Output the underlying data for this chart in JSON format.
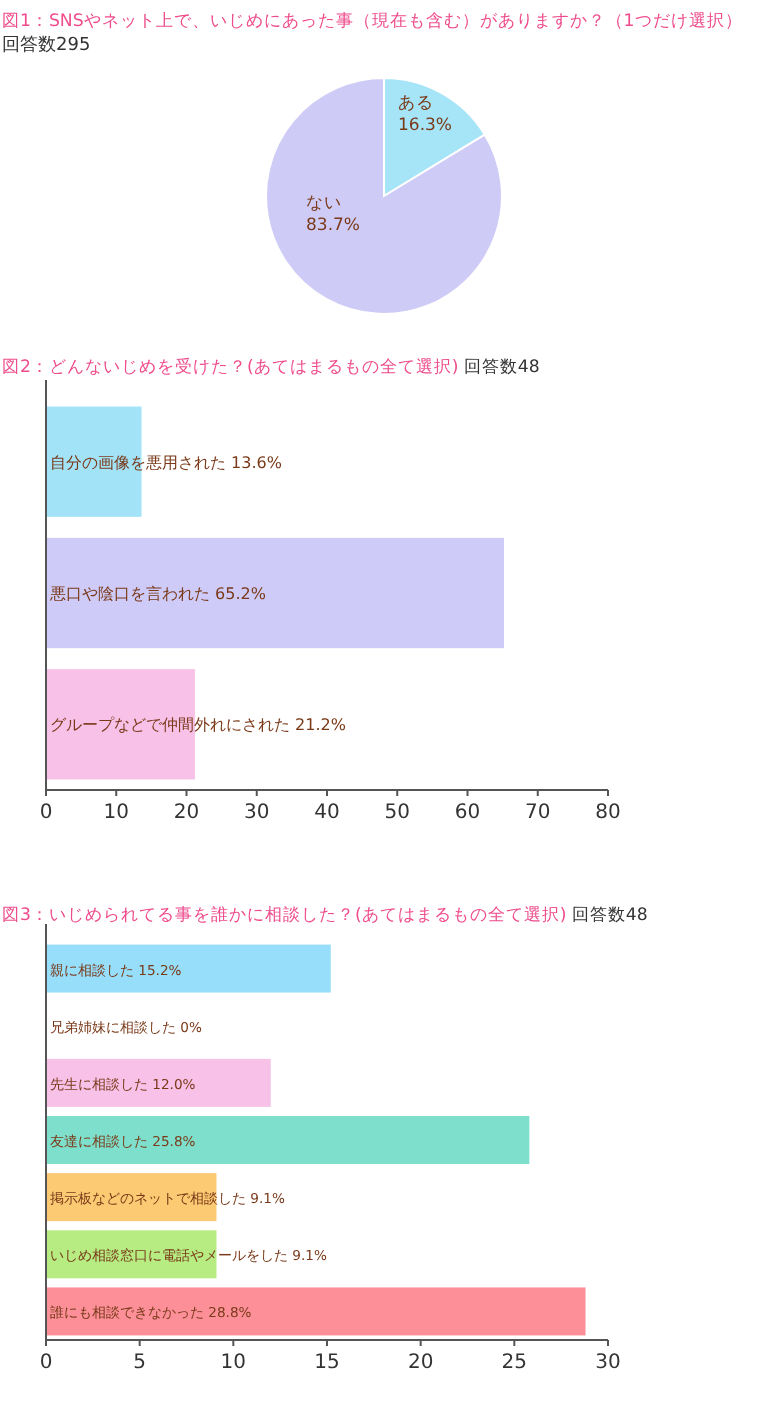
{
  "chart_data": [
    {
      "type": "pie",
      "title": "図1：SNSやネット上で、いじめにあった事（現在も含む）がありますか？（1つだけ選択）",
      "subtitle": "回答数295",
      "categories": [
        "ある",
        "ない"
      ],
      "values": [
        16.3,
        83.7
      ],
      "colors": [
        "#a6e4f7",
        "#cfcbf7"
      ],
      "value_labels": [
        "16.3%",
        "83.7%"
      ]
    },
    {
      "type": "bar",
      "orientation": "horizontal",
      "title": "図2：どんないじめを受けた？(あてはまるもの全て選択)",
      "subtitle": "回答数48",
      "categories": [
        "自分の画像を悪用された",
        "悪口や陰口を言われた",
        "グループなどで仲間外れにされた"
      ],
      "values": [
        13.6,
        65.2,
        21.2
      ],
      "colors": [
        "#a3e3f8",
        "#cfcbf8",
        "#f8c1e8"
      ],
      "value_labels": [
        "13.6%",
        "65.2%",
        "21.2%"
      ],
      "xlim": [
        0,
        80
      ],
      "xticks": [
        0,
        10,
        20,
        30,
        40,
        50,
        60,
        70,
        80
      ]
    },
    {
      "type": "bar",
      "orientation": "horizontal",
      "title": "図3：いじめられてる事を誰かに相談した？(あてはまるもの全て選択)",
      "subtitle": "回答数48",
      "categories": [
        "親に相談した",
        "兄弟姉妹に相談した",
        "先生に相談した",
        "友達に相談した",
        "掲示板などのネットで相談した",
        "いじめ相談窓口に電話やメールをした",
        "誰にも相談できなかった"
      ],
      "values": [
        15.2,
        0,
        12.0,
        25.8,
        9.1,
        9.1,
        28.8
      ],
      "colors": [
        "#96defa",
        "#d0d0d0",
        "#f8c1e8",
        "#7ee0cc",
        "#fcca72",
        "#b6ec82",
        "#fc8f97"
      ],
      "value_labels": [
        "15.2%",
        "0%",
        "12.0%",
        "25.8%",
        "9.1%",
        "9.1%",
        "28.8%"
      ],
      "xlim": [
        0,
        30
      ],
      "xticks": [
        0,
        5,
        10,
        15,
        20,
        25,
        30
      ]
    }
  ]
}
